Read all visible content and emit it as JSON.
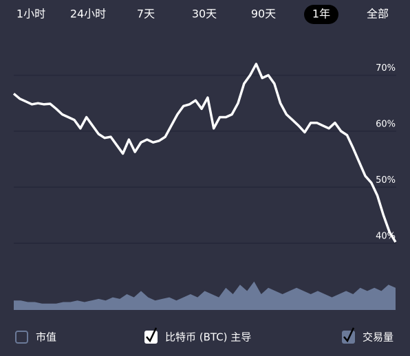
{
  "tabs": {
    "items": [
      "1小时",
      "24小时",
      "7天",
      "30天",
      "90天",
      "1年",
      "全部"
    ],
    "selected_index": 5
  },
  "chart_data": {
    "type": "line",
    "ylim": [
      39,
      73
    ],
    "yticks": [
      {
        "value": 40,
        "label": "40%"
      },
      {
        "value": 50,
        "label": "50%"
      },
      {
        "value": 60,
        "label": "60%"
      },
      {
        "value": 70,
        "label": "70%"
      }
    ],
    "grid": true,
    "series": [
      {
        "name": "比特币 (BTC) 主导",
        "color": "#ffffff",
        "values": [
          66.7,
          65.8,
          65.3,
          64.8,
          65.0,
          64.8,
          64.9,
          64.0,
          63.0,
          62.5,
          62.0,
          60.5,
          62.5,
          61.0,
          59.5,
          58.8,
          59.0,
          57.5,
          56.0,
          58.5,
          56.3,
          58.0,
          58.5,
          58.0,
          58.3,
          59.0,
          61.0,
          63.0,
          64.5,
          64.8,
          65.5,
          64.0,
          66.0,
          60.5,
          62.5,
          62.5,
          63.0,
          65.0,
          68.5,
          70.0,
          72.0,
          69.5,
          70.0,
          68.5,
          65.0,
          63.0,
          62.0,
          61.0,
          59.8,
          61.5,
          61.5,
          61.0,
          60.5,
          61.5,
          60.0,
          59.3,
          57.0,
          54.5,
          52.0,
          50.8,
          48.5,
          45.0,
          42.0,
          40.2
        ]
      },
      {
        "name": "交易量",
        "type": "area",
        "axis": "y2",
        "color": "#6b7a99",
        "values": [
          3,
          3,
          2.5,
          2.5,
          2,
          2,
          2,
          2.5,
          2.5,
          3,
          2.5,
          3,
          3.5,
          3,
          4,
          3.5,
          5,
          4,
          6,
          4,
          3,
          3.5,
          4,
          3,
          4,
          5,
          4,
          6,
          5,
          4,
          7,
          5,
          8,
          6,
          9,
          5,
          7,
          6,
          5,
          6,
          7,
          6,
          5,
          6,
          5,
          4,
          5,
          6,
          5,
          7,
          6,
          7,
          6,
          8,
          7
        ]
      }
    ],
    "y2lim": [
      0,
      10
    ]
  },
  "legend": [
    {
      "label": "市值",
      "checked": false
    },
    {
      "label": "比特币 (BTC) 主导",
      "checked": true
    },
    {
      "label": "交易量",
      "checked": true
    }
  ]
}
